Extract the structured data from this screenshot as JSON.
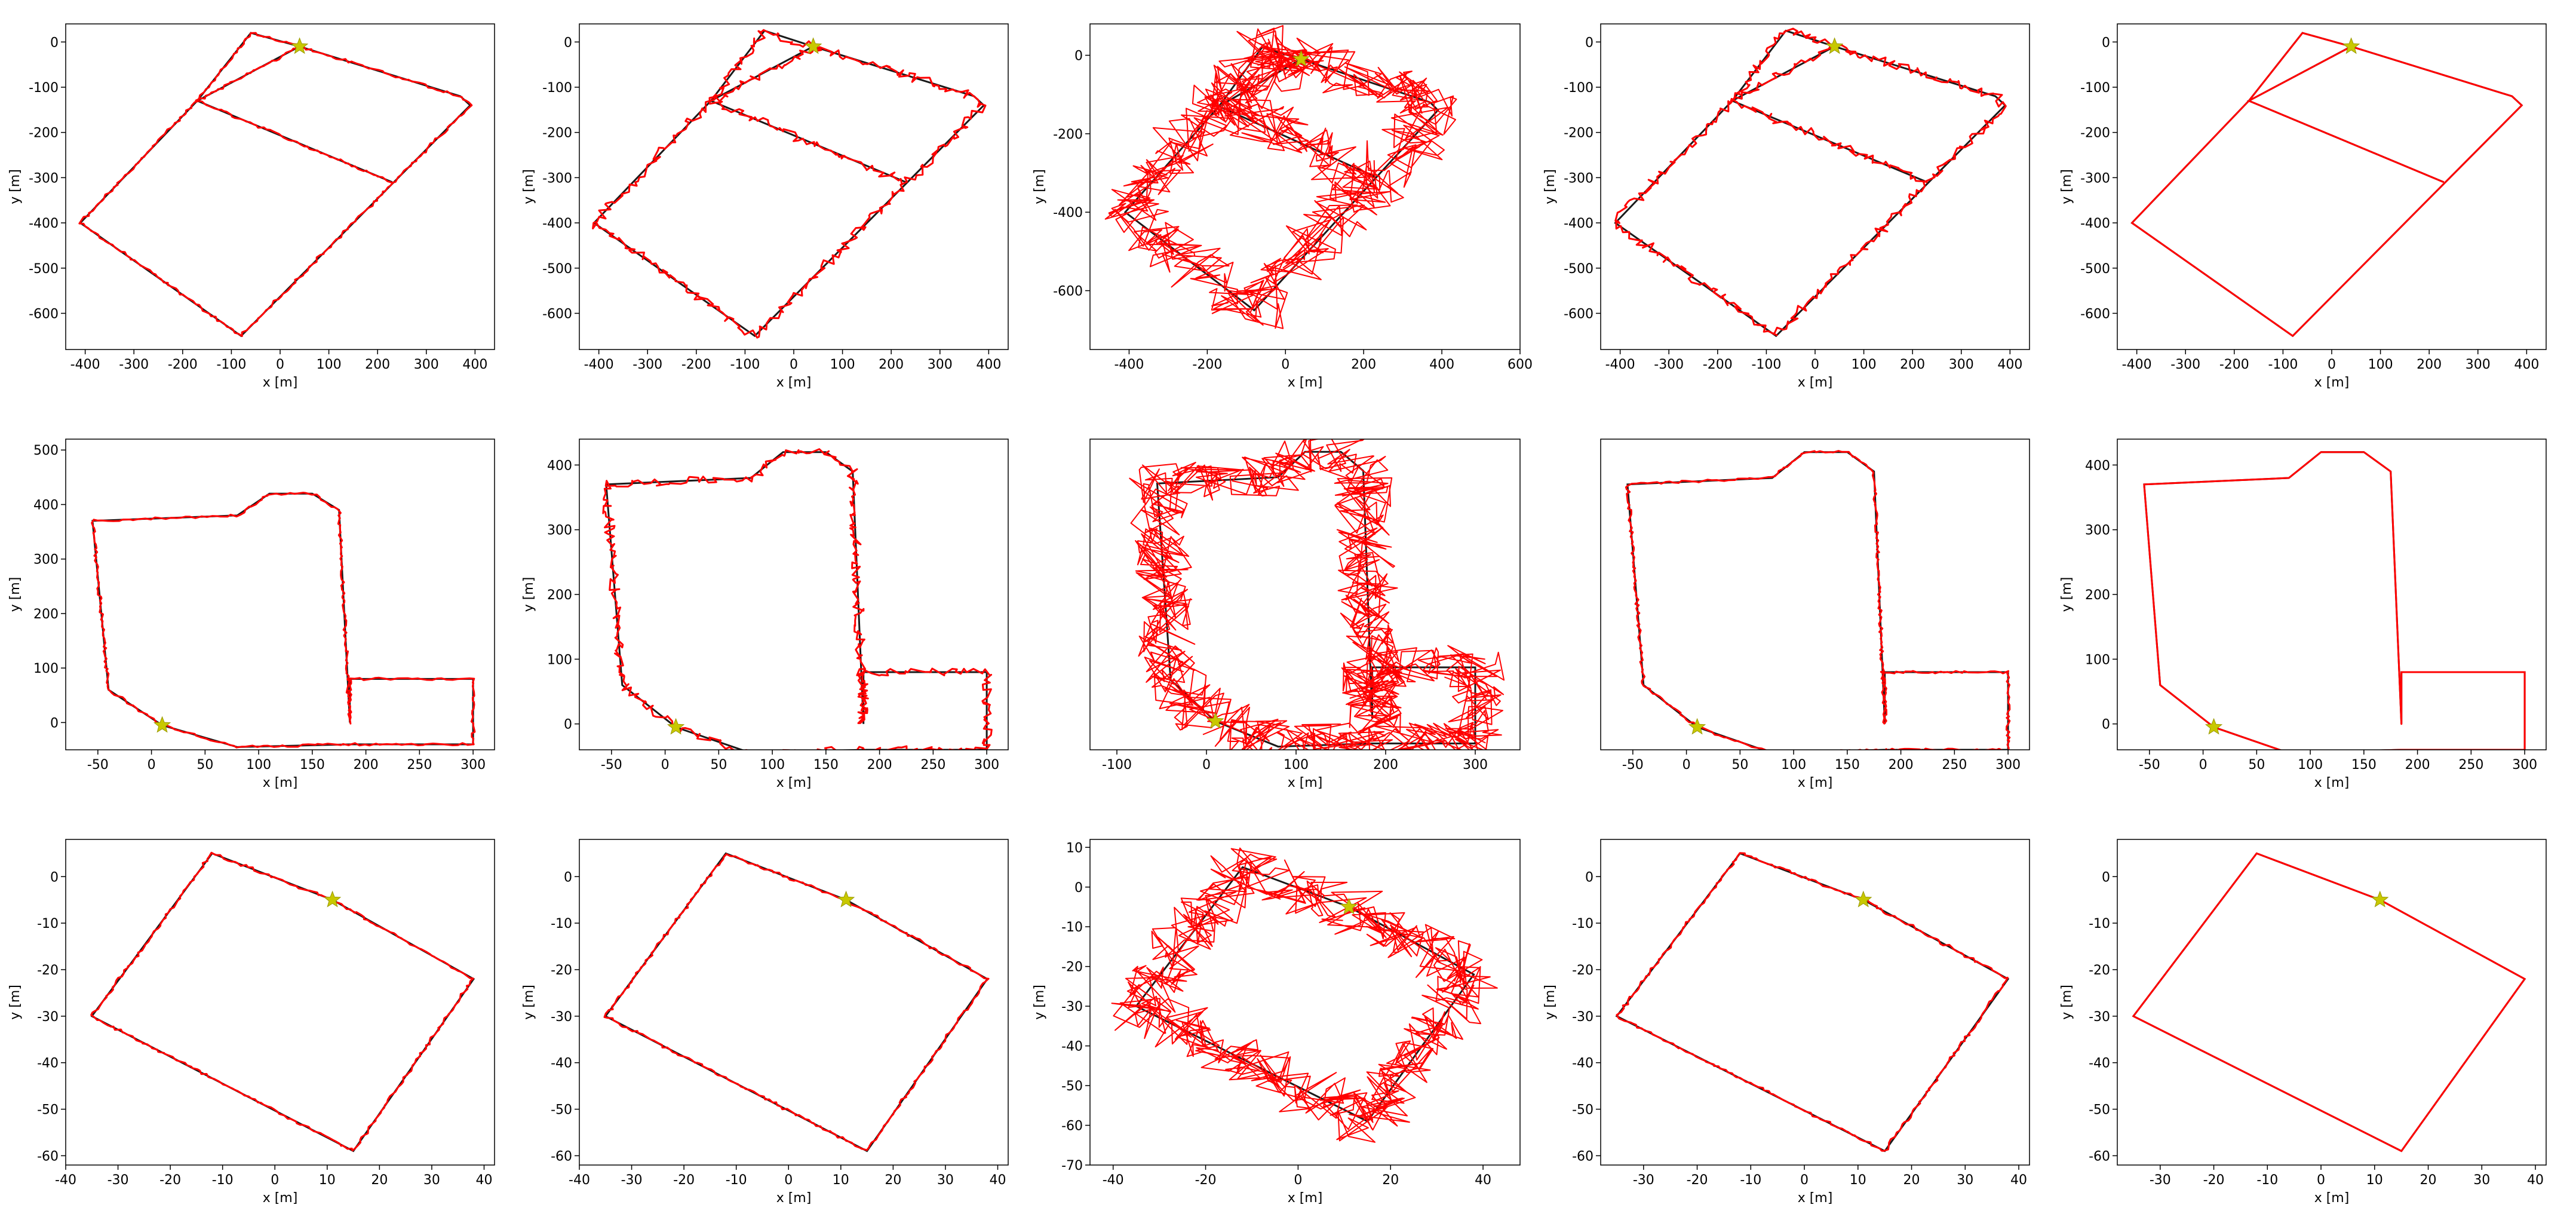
{
  "colors": {
    "ground_truth": "#1a1a1a",
    "estimate": "#ff0000",
    "start_marker": "#c8c800",
    "axes": "#000000"
  },
  "chart_data": [
    {
      "type": "line",
      "xlabel": "x [m]",
      "ylabel": "y [m]",
      "xlim": [
        -440,
        440
      ],
      "ylim": [
        -680,
        40
      ],
      "xticks": [
        -400,
        -300,
        -200,
        -100,
        0,
        100,
        200,
        300,
        400
      ],
      "yticks": [
        0,
        -100,
        -200,
        -300,
        -400,
        -500,
        -600
      ],
      "start": [
        40,
        -10
      ],
      "noise": "low",
      "ground_truth": [
        [
          40,
          -10
        ],
        [
          -60,
          20
        ],
        [
          -170,
          -130
        ],
        [
          -410,
          -400
        ],
        [
          -80,
          -650
        ],
        [
          390,
          -140
        ],
        [
          370,
          -120
        ],
        [
          40,
          -10
        ],
        [
          -170,
          -130
        ],
        [
          230,
          -310
        ]
      ]
    },
    {
      "type": "line",
      "xlabel": "x [m]",
      "ylabel": "y [m]",
      "xlim": [
        -440,
        440
      ],
      "ylim": [
        -680,
        40
      ],
      "xticks": [
        -400,
        -300,
        -200,
        -100,
        0,
        100,
        200,
        300,
        400
      ],
      "yticks": [
        0,
        -100,
        -200,
        -300,
        -400,
        -500,
        -600
      ],
      "start": [
        40,
        -10
      ],
      "noise": "medium",
      "ground_truth": [
        [
          40,
          -10
        ],
        [
          -60,
          25
        ],
        [
          -170,
          -130
        ],
        [
          -410,
          -400
        ],
        [
          -80,
          -650
        ],
        [
          390,
          -140
        ],
        [
          370,
          -120
        ],
        [
          40,
          -10
        ],
        [
          -170,
          -130
        ],
        [
          230,
          -310
        ]
      ]
    },
    {
      "type": "line",
      "xlabel": "x [m]",
      "ylabel": "y [m]",
      "xlim": [
        -500,
        600
      ],
      "ylim": [
        -750,
        80
      ],
      "xticks": [
        -400,
        -200,
        0,
        200,
        400,
        600
      ],
      "yticks": [
        0,
        -200,
        -400,
        -600
      ],
      "start": [
        40,
        -10
      ],
      "noise": "high",
      "ground_truth": [
        [
          40,
          -10
        ],
        [
          -60,
          20
        ],
        [
          -170,
          -130
        ],
        [
          -410,
          -400
        ],
        [
          -80,
          -650
        ],
        [
          390,
          -140
        ],
        [
          370,
          -120
        ],
        [
          40,
          -10
        ],
        [
          -170,
          -130
        ],
        [
          230,
          -310
        ]
      ]
    },
    {
      "type": "line",
      "xlabel": "x [m]",
      "ylabel": "y [m]",
      "xlim": [
        -440,
        440
      ],
      "ylim": [
        -680,
        40
      ],
      "xticks": [
        -400,
        -300,
        -200,
        -100,
        0,
        100,
        200,
        300,
        400
      ],
      "yticks": [
        0,
        -100,
        -200,
        -300,
        -400,
        -500,
        -600
      ],
      "start": [
        40,
        -10
      ],
      "noise": "medium",
      "ground_truth": [
        [
          40,
          -10
        ],
        [
          -60,
          25
        ],
        [
          -170,
          -130
        ],
        [
          -410,
          -400
        ],
        [
          -80,
          -650
        ],
        [
          390,
          -140
        ],
        [
          370,
          -120
        ],
        [
          40,
          -10
        ],
        [
          -170,
          -130
        ],
        [
          230,
          -310
        ]
      ]
    },
    {
      "type": "line",
      "xlabel": "x [m]",
      "ylabel": "y [m]",
      "xlim": [
        -440,
        440
      ],
      "ylim": [
        -680,
        40
      ],
      "xticks": [
        -400,
        -300,
        -200,
        -100,
        0,
        100,
        200,
        300,
        400
      ],
      "yticks": [
        0,
        -100,
        -200,
        -300,
        -400,
        -500,
        -600
      ],
      "start": [
        40,
        -10
      ],
      "noise": "none",
      "ground_truth": [
        [
          40,
          -10
        ],
        [
          -60,
          20
        ],
        [
          -170,
          -130
        ],
        [
          -410,
          -400
        ],
        [
          -80,
          -650
        ],
        [
          390,
          -140
        ],
        [
          370,
          -120
        ],
        [
          40,
          -10
        ],
        [
          -170,
          -130
        ],
        [
          230,
          -310
        ]
      ]
    },
    {
      "type": "line",
      "xlabel": "x [m]",
      "ylabel": "y [m]",
      "xlim": [
        -80,
        320
      ],
      "ylim": [
        -50,
        520
      ],
      "xticks": [
        -50,
        0,
        50,
        100,
        150,
        200,
        250,
        300
      ],
      "yticks": [
        0,
        100,
        200,
        300,
        400,
        500
      ],
      "start": [
        10,
        -5
      ],
      "noise": "low",
      "ground_truth": [
        [
          10,
          -5
        ],
        [
          -40,
          60
        ],
        [
          -55,
          370
        ],
        [
          80,
          380
        ],
        [
          110,
          420
        ],
        [
          150,
          420
        ],
        [
          175,
          390
        ],
        [
          185,
          0
        ],
        [
          185,
          80
        ],
        [
          300,
          80
        ],
        [
          300,
          -40
        ],
        [
          185,
          -40
        ],
        [
          185,
          -40
        ],
        [
          80,
          -45
        ],
        [
          10,
          -5
        ]
      ]
    },
    {
      "type": "line",
      "xlabel": "x [m]",
      "ylabel": "y [m]",
      "xlim": [
        -80,
        320
      ],
      "ylim": [
        -40,
        440
      ],
      "xticks": [
        -50,
        0,
        50,
        100,
        150,
        200,
        250,
        300
      ],
      "yticks": [
        0,
        100,
        200,
        300,
        400
      ],
      "start": [
        10,
        -5
      ],
      "noise": "medium",
      "ground_truth": [
        [
          10,
          -5
        ],
        [
          -40,
          60
        ],
        [
          -55,
          370
        ],
        [
          80,
          380
        ],
        [
          110,
          420
        ],
        [
          150,
          420
        ],
        [
          175,
          390
        ],
        [
          185,
          0
        ],
        [
          185,
          80
        ],
        [
          300,
          80
        ],
        [
          300,
          -40
        ],
        [
          185,
          -40
        ],
        [
          185,
          -40
        ],
        [
          80,
          -45
        ],
        [
          10,
          -5
        ]
      ]
    },
    {
      "type": "line",
      "xlabel": "x [m]",
      "ylabel": "",
      "xlim": [
        -130,
        350
      ],
      "ylim": [
        -50,
        440
      ],
      "xticks": [
        -100,
        0,
        100,
        200,
        300
      ],
      "yticks": [],
      "start": [
        10,
        -5
      ],
      "noise": "high",
      "ground_truth": [
        [
          10,
          -5
        ],
        [
          -40,
          60
        ],
        [
          -55,
          370
        ],
        [
          80,
          380
        ],
        [
          110,
          420
        ],
        [
          150,
          420
        ],
        [
          175,
          390
        ],
        [
          185,
          0
        ],
        [
          185,
          80
        ],
        [
          300,
          80
        ],
        [
          300,
          -40
        ],
        [
          185,
          -40
        ],
        [
          185,
          -40
        ],
        [
          80,
          -45
        ],
        [
          10,
          -5
        ]
      ]
    },
    {
      "type": "line",
      "xlabel": "x [m]",
      "ylabel": "",
      "xlim": [
        -80,
        320
      ],
      "ylim": [
        -40,
        440
      ],
      "xticks": [
        -50,
        0,
        50,
        100,
        150,
        200,
        250,
        300
      ],
      "yticks": [],
      "start": [
        10,
        -5
      ],
      "noise": "low",
      "ground_truth": [
        [
          10,
          -5
        ],
        [
          -40,
          60
        ],
        [
          -55,
          370
        ],
        [
          80,
          380
        ],
        [
          110,
          420
        ],
        [
          150,
          420
        ],
        [
          175,
          390
        ],
        [
          185,
          0
        ],
        [
          185,
          80
        ],
        [
          300,
          80
        ],
        [
          300,
          -40
        ],
        [
          185,
          -40
        ],
        [
          185,
          -40
        ],
        [
          80,
          -45
        ],
        [
          10,
          -5
        ]
      ]
    },
    {
      "type": "line",
      "xlabel": "x [m]",
      "ylabel": "y [m]",
      "xlim": [
        -80,
        320
      ],
      "ylim": [
        -40,
        440
      ],
      "xticks": [
        -50,
        0,
        50,
        100,
        150,
        200,
        250,
        300
      ],
      "yticks": [
        0,
        100,
        200,
        300,
        400
      ],
      "start": [
        10,
        -5
      ],
      "noise": "none",
      "ground_truth": [
        [
          10,
          -5
        ],
        [
          -40,
          60
        ],
        [
          -55,
          370
        ],
        [
          80,
          380
        ],
        [
          110,
          420
        ],
        [
          150,
          420
        ],
        [
          175,
          390
        ],
        [
          185,
          0
        ],
        [
          185,
          80
        ],
        [
          300,
          80
        ],
        [
          300,
          -40
        ],
        [
          185,
          -40
        ],
        [
          185,
          -40
        ],
        [
          80,
          -45
        ],
        [
          10,
          -5
        ]
      ]
    },
    {
      "type": "line",
      "xlabel": "x [m]",
      "ylabel": "y [m]",
      "xlim": [
        -40,
        42
      ],
      "ylim": [
        -62,
        8
      ],
      "xticks": [
        -40,
        -30,
        -20,
        -10,
        0,
        10,
        20,
        30,
        40
      ],
      "yticks": [
        0,
        -10,
        -20,
        -30,
        -40,
        -50,
        -60
      ],
      "start": [
        11,
        -5
      ],
      "noise": "low",
      "ground_truth": [
        [
          11,
          -5
        ],
        [
          -12,
          5
        ],
        [
          -35,
          -30
        ],
        [
          15,
          -59
        ],
        [
          38,
          -22
        ],
        [
          11,
          -5
        ]
      ]
    },
    {
      "type": "line",
      "xlabel": "x [m]",
      "ylabel": "y [m]",
      "xlim": [
        -40,
        42
      ],
      "ylim": [
        -62,
        8
      ],
      "xticks": [
        -40,
        -30,
        -20,
        -10,
        0,
        10,
        20,
        30,
        40
      ],
      "yticks": [
        0,
        -10,
        -20,
        -30,
        -40,
        -50,
        -60
      ],
      "start": [
        11,
        -5
      ],
      "noise": "low",
      "ground_truth": [
        [
          11,
          -5
        ],
        [
          -12,
          5
        ],
        [
          -35,
          -30
        ],
        [
          15,
          -59
        ],
        [
          38,
          -22
        ],
        [
          11,
          -5
        ]
      ]
    },
    {
      "type": "line",
      "xlabel": "x [m]",
      "ylabel": "y [m]",
      "xlim": [
        -45,
        48
      ],
      "ylim": [
        -70,
        12
      ],
      "xticks": [
        -40,
        -20,
        0,
        20,
        40
      ],
      "yticks": [
        10,
        0,
        -10,
        -20,
        -30,
        -40,
        -50,
        -60,
        -70
      ],
      "start": [
        11,
        -5
      ],
      "noise": "high",
      "ground_truth": [
        [
          11,
          -5
        ],
        [
          -12,
          5
        ],
        [
          -35,
          -30
        ],
        [
          15,
          -59
        ],
        [
          38,
          -22
        ],
        [
          11,
          -5
        ]
      ]
    },
    {
      "type": "line",
      "xlabel": "x [m]",
      "ylabel": "y [m]",
      "xlim": [
        -38,
        42
      ],
      "ylim": [
        -62,
        8
      ],
      "xticks": [
        -30,
        -20,
        -10,
        0,
        10,
        20,
        30,
        40
      ],
      "yticks": [
        0,
        -10,
        -20,
        -30,
        -40,
        -50,
        -60
      ],
      "start": [
        11,
        -5
      ],
      "noise": "low",
      "ground_truth": [
        [
          11,
          -5
        ],
        [
          -12,
          5
        ],
        [
          -35,
          -30
        ],
        [
          15,
          -59
        ],
        [
          38,
          -22
        ],
        [
          11,
          -5
        ]
      ]
    },
    {
      "type": "line",
      "xlabel": "x [m]",
      "ylabel": "y [m]",
      "xlim": [
        -38,
        42
      ],
      "ylim": [
        -62,
        8
      ],
      "xticks": [
        -30,
        -20,
        -10,
        0,
        10,
        20,
        30,
        40
      ],
      "yticks": [
        0,
        -10,
        -20,
        -30,
        -40,
        -50,
        -60
      ],
      "start": [
        11,
        -5
      ],
      "noise": "none",
      "ground_truth": [
        [
          11,
          -5
        ],
        [
          -12,
          5
        ],
        [
          -35,
          -30
        ],
        [
          15,
          -59
        ],
        [
          38,
          -22
        ],
        [
          11,
          -5
        ]
      ]
    }
  ]
}
